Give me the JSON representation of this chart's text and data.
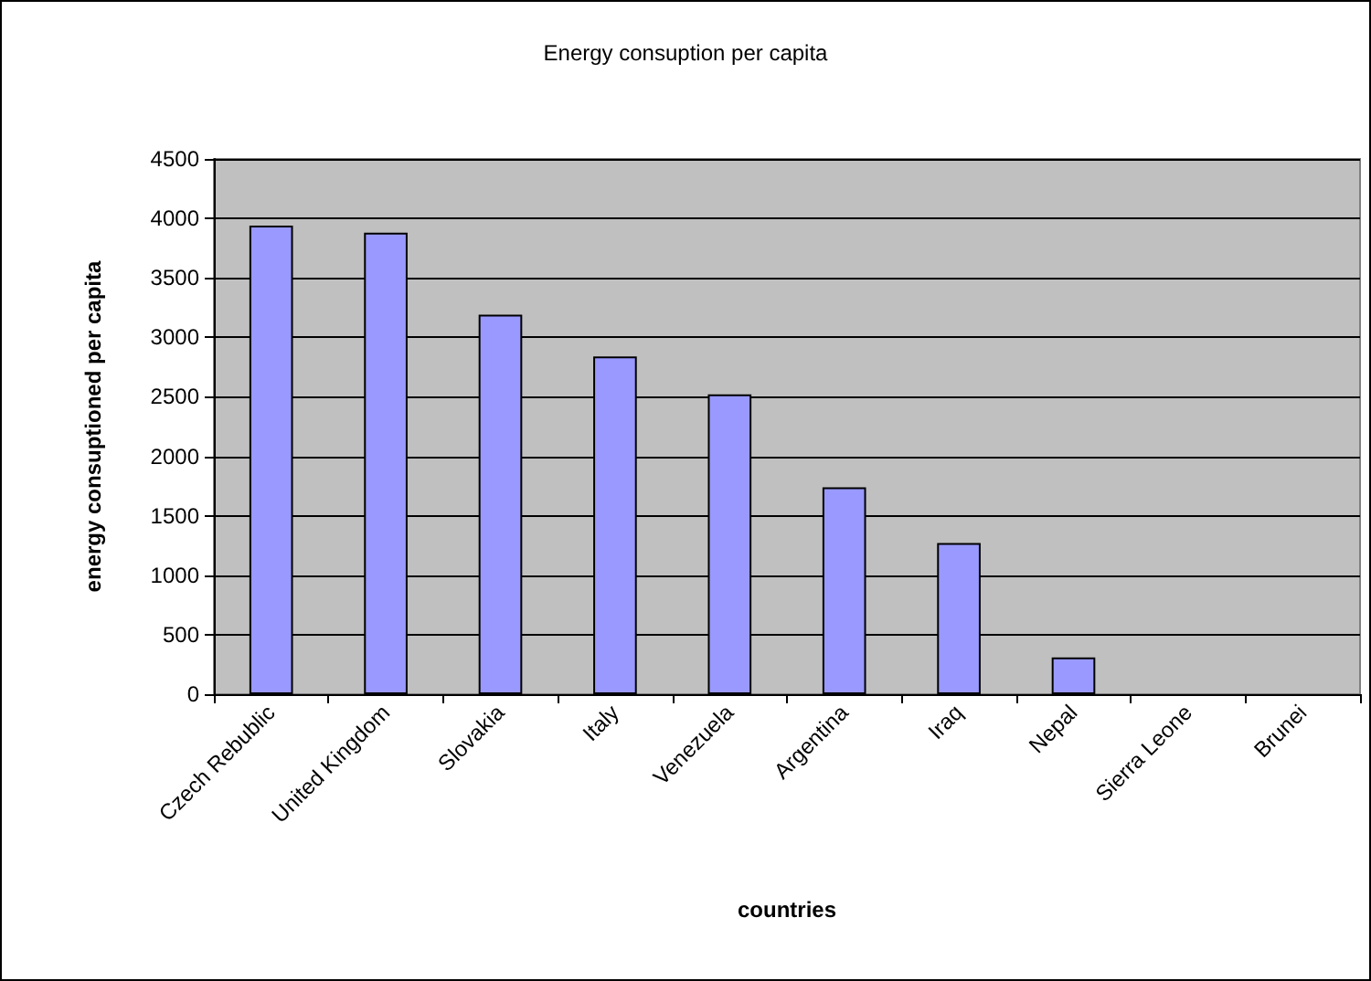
{
  "chart_data": {
    "type": "bar",
    "title": "Energy consuption per capita",
    "xlabel": "countries",
    "ylabel": "energy consuptioned per capita",
    "categories": [
      "Czech Rebublic",
      "United Kingdom",
      "Slovakia",
      "Italy",
      "Venezuela",
      "Argentina",
      "Iraq",
      "Nepal",
      "Sierra Leone",
      "Brunei"
    ],
    "values": [
      3940,
      3880,
      3190,
      2840,
      2520,
      1740,
      1270,
      310,
      0,
      0
    ],
    "color": "#9999ff",
    "ylim": [
      0,
      4500
    ],
    "yticks": [
      0,
      500,
      1000,
      1500,
      2000,
      2500,
      3000,
      3500,
      4000,
      4500
    ],
    "grid": "y"
  }
}
